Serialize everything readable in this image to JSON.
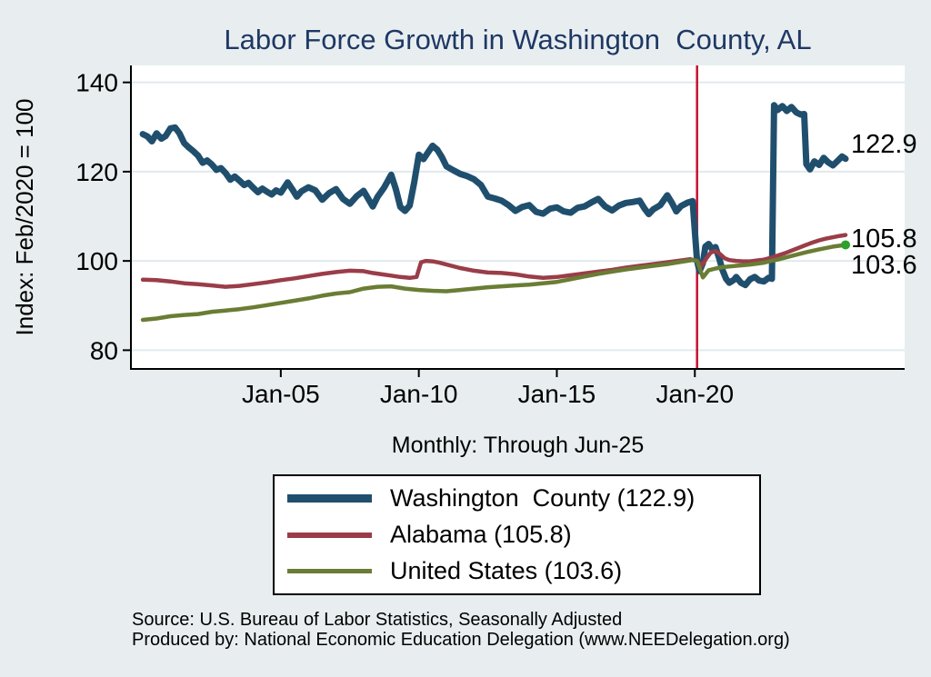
{
  "title": "Labor Force Growth in Washington  County, AL",
  "subtitle": "Monthly: Through Jun-25",
  "source": {
    "line1": "Source: U.S. Bureau of Labor Statistics, Seasonally Adjusted",
    "line2": "Produced by: National Economic Education Delegation (www.NEEDelegation.org)"
  },
  "colors": {
    "background": "#e8eef0",
    "plot_background": "#ffffff",
    "gridline": "#e0eaee",
    "axis": "#000000",
    "title_text": "#1f3864",
    "washington_county": "#204f6e",
    "alabama": "#9a3d48",
    "united_states": "#6a7d34",
    "us_end_marker": "#2ca12c",
    "reference_line": "#c41233"
  },
  "legend": {
    "entries": [
      {
        "label": "Washington  County (122.9)",
        "color": "#204f6e"
      },
      {
        "label": "Alabama (105.8)",
        "color": "#9a3d48"
      },
      {
        "label": "United States (103.6)",
        "color": "#6a7d34"
      }
    ]
  },
  "chart_data": {
    "type": "line",
    "title": "Labor Force Growth in Washington  County, AL",
    "subtitle": "Monthly: Through Jun-25",
    "xlabel": "",
    "ylabel": "Index: Feb/2020 = 100",
    "xlim": [
      1999.57,
      2027.6
    ],
    "ylim": [
      75.8,
      143.8
    ],
    "y_ticks": [
      80,
      100,
      120,
      140
    ],
    "y_tick_labels": [
      "80",
      "100",
      "120",
      "140"
    ],
    "x_ticks": [
      2005,
      2010,
      2015,
      2020
    ],
    "x_tick_labels": [
      "Jan-05",
      "Jan-10",
      "Jan-15",
      "Jan-20"
    ],
    "grid": true,
    "legend_position": "below",
    "vline_x": 2020.08,
    "vline_label": "Feb-2020 reference line",
    "end_labels": [
      "122.9",
      "105.8",
      "103.6"
    ],
    "series": [
      {
        "name": "Washington County",
        "final_value": 122.9,
        "color": "#204f6e",
        "width": 7,
        "points": [
          [
            2000.0,
            128.4
          ],
          [
            2000.17,
            127.9
          ],
          [
            2000.33,
            126.8
          ],
          [
            2000.5,
            128.6
          ],
          [
            2000.67,
            127.4
          ],
          [
            2000.83,
            128.0
          ],
          [
            2001.0,
            129.7
          ],
          [
            2001.17,
            129.9
          ],
          [
            2001.33,
            128.6
          ],
          [
            2001.5,
            126.4
          ],
          [
            2001.67,
            125.4
          ],
          [
            2001.83,
            124.6
          ],
          [
            2002.0,
            123.6
          ],
          [
            2002.17,
            122.0
          ],
          [
            2002.33,
            122.5
          ],
          [
            2002.5,
            121.6
          ],
          [
            2002.67,
            120.4
          ],
          [
            2002.83,
            120.8
          ],
          [
            2003.0,
            119.7
          ],
          [
            2003.17,
            118.2
          ],
          [
            2003.33,
            118.9
          ],
          [
            2003.5,
            118.0
          ],
          [
            2003.67,
            117.0
          ],
          [
            2003.83,
            117.5
          ],
          [
            2004.0,
            116.4
          ],
          [
            2004.17,
            115.4
          ],
          [
            2004.33,
            116.2
          ],
          [
            2004.5,
            115.5
          ],
          [
            2004.67,
            114.9
          ],
          [
            2004.83,
            115.8
          ],
          [
            2005.0,
            115.3
          ],
          [
            2005.25,
            117.6
          ],
          [
            2005.42,
            116.0
          ],
          [
            2005.58,
            114.4
          ],
          [
            2005.75,
            115.6
          ],
          [
            2006.0,
            116.5
          ],
          [
            2006.25,
            115.8
          ],
          [
            2006.5,
            113.7
          ],
          [
            2006.75,
            115.2
          ],
          [
            2007.0,
            116.1
          ],
          [
            2007.25,
            113.9
          ],
          [
            2007.5,
            112.8
          ],
          [
            2007.75,
            114.5
          ],
          [
            2008.0,
            115.7
          ],
          [
            2008.17,
            113.9
          ],
          [
            2008.33,
            112.2
          ],
          [
            2008.5,
            114.3
          ],
          [
            2008.75,
            116.5
          ],
          [
            2009.0,
            119.3
          ],
          [
            2009.17,
            116.0
          ],
          [
            2009.33,
            112.1
          ],
          [
            2009.5,
            111.2
          ],
          [
            2009.67,
            112.4
          ],
          [
            2009.83,
            117.5
          ],
          [
            2010.0,
            123.8
          ],
          [
            2010.17,
            122.8
          ],
          [
            2010.33,
            124.3
          ],
          [
            2010.5,
            125.8
          ],
          [
            2010.67,
            124.9
          ],
          [
            2010.83,
            123.3
          ],
          [
            2011.0,
            121.2
          ],
          [
            2011.25,
            120.3
          ],
          [
            2011.5,
            119.5
          ],
          [
            2011.75,
            119.0
          ],
          [
            2012.0,
            118.3
          ],
          [
            2012.25,
            117.0
          ],
          [
            2012.5,
            114.4
          ],
          [
            2012.75,
            114.0
          ],
          [
            2013.0,
            113.5
          ],
          [
            2013.25,
            112.5
          ],
          [
            2013.5,
            111.2
          ],
          [
            2013.75,
            112.1
          ],
          [
            2014.0,
            112.5
          ],
          [
            2014.25,
            111.0
          ],
          [
            2014.5,
            110.6
          ],
          [
            2014.75,
            111.7
          ],
          [
            2015.0,
            112.0
          ],
          [
            2015.25,
            111.1
          ],
          [
            2015.5,
            110.8
          ],
          [
            2015.75,
            111.9
          ],
          [
            2016.0,
            112.2
          ],
          [
            2016.25,
            113.1
          ],
          [
            2016.5,
            113.9
          ],
          [
            2016.75,
            112.2
          ],
          [
            2017.0,
            111.3
          ],
          [
            2017.25,
            112.4
          ],
          [
            2017.5,
            113.0
          ],
          [
            2017.75,
            113.2
          ],
          [
            2018.0,
            113.5
          ],
          [
            2018.17,
            111.8
          ],
          [
            2018.33,
            110.5
          ],
          [
            2018.5,
            111.6
          ],
          [
            2018.75,
            112.5
          ],
          [
            2019.0,
            114.7
          ],
          [
            2019.17,
            113.0
          ],
          [
            2019.33,
            111.1
          ],
          [
            2019.5,
            112.3
          ],
          [
            2019.75,
            113.1
          ],
          [
            2019.92,
            113.4
          ],
          [
            2020.08,
            100.0
          ],
          [
            2020.17,
            97.7
          ],
          [
            2020.29,
            99.5
          ],
          [
            2020.38,
            103.2
          ],
          [
            2020.5,
            103.8
          ],
          [
            2020.63,
            102.6
          ],
          [
            2020.75,
            103.1
          ],
          [
            2020.88,
            100.6
          ],
          [
            2021.0,
            98.0
          ],
          [
            2021.13,
            96.0
          ],
          [
            2021.25,
            95.1
          ],
          [
            2021.42,
            95.8
          ],
          [
            2021.5,
            96.4
          ],
          [
            2021.67,
            95.1
          ],
          [
            2021.83,
            94.6
          ],
          [
            2022.0,
            95.9
          ],
          [
            2022.17,
            96.4
          ],
          [
            2022.33,
            95.6
          ],
          [
            2022.5,
            95.4
          ],
          [
            2022.67,
            96.2
          ],
          [
            2022.79,
            96.0
          ],
          [
            2022.87,
            134.9
          ],
          [
            2023.0,
            133.8
          ],
          [
            2023.17,
            134.7
          ],
          [
            2023.33,
            133.6
          ],
          [
            2023.5,
            134.5
          ],
          [
            2023.67,
            133.3
          ],
          [
            2023.83,
            132.8
          ],
          [
            2023.96,
            132.9
          ],
          [
            2024.04,
            121.7
          ],
          [
            2024.17,
            120.5
          ],
          [
            2024.33,
            122.3
          ],
          [
            2024.5,
            121.5
          ],
          [
            2024.67,
            123.1
          ],
          [
            2024.83,
            122.1
          ],
          [
            2025.0,
            121.4
          ],
          [
            2025.17,
            122.4
          ],
          [
            2025.33,
            123.4
          ],
          [
            2025.46,
            122.9
          ]
        ]
      },
      {
        "name": "Alabama",
        "final_value": 105.8,
        "color": "#9a3d48",
        "width": 4.5,
        "points": [
          [
            2000.0,
            95.8
          ],
          [
            2000.5,
            95.7
          ],
          [
            2001.0,
            95.4
          ],
          [
            2001.5,
            95.0
          ],
          [
            2002.0,
            94.8
          ],
          [
            2002.5,
            94.5
          ],
          [
            2003.0,
            94.2
          ],
          [
            2003.5,
            94.4
          ],
          [
            2004.0,
            94.8
          ],
          [
            2004.5,
            95.2
          ],
          [
            2005.0,
            95.7
          ],
          [
            2005.5,
            96.1
          ],
          [
            2006.0,
            96.6
          ],
          [
            2006.5,
            97.1
          ],
          [
            2007.0,
            97.5
          ],
          [
            2007.5,
            97.8
          ],
          [
            2008.0,
            97.7
          ],
          [
            2008.33,
            97.3
          ],
          [
            2008.67,
            97.0
          ],
          [
            2009.0,
            96.7
          ],
          [
            2009.33,
            96.4
          ],
          [
            2009.67,
            96.2
          ],
          [
            2009.92,
            96.4
          ],
          [
            2010.08,
            99.7
          ],
          [
            2010.25,
            100.0
          ],
          [
            2010.5,
            99.9
          ],
          [
            2010.75,
            99.6
          ],
          [
            2011.0,
            99.2
          ],
          [
            2011.5,
            98.4
          ],
          [
            2012.0,
            97.8
          ],
          [
            2012.5,
            97.4
          ],
          [
            2013.0,
            97.3
          ],
          [
            2013.5,
            97.0
          ],
          [
            2014.0,
            96.5
          ],
          [
            2014.5,
            96.2
          ],
          [
            2015.0,
            96.4
          ],
          [
            2015.5,
            96.8
          ],
          [
            2016.0,
            97.2
          ],
          [
            2016.5,
            97.6
          ],
          [
            2017.0,
            98.0
          ],
          [
            2017.5,
            98.5
          ],
          [
            2018.0,
            98.9
          ],
          [
            2018.5,
            99.3
          ],
          [
            2019.0,
            99.7
          ],
          [
            2019.5,
            100.1
          ],
          [
            2019.83,
            100.4
          ],
          [
            2020.08,
            100.0
          ],
          [
            2020.25,
            98.9
          ],
          [
            2020.42,
            100.6
          ],
          [
            2020.58,
            101.9
          ],
          [
            2020.75,
            102.2
          ],
          [
            2020.92,
            101.5
          ],
          [
            2021.08,
            100.6
          ],
          [
            2021.25,
            100.2
          ],
          [
            2021.5,
            100.0
          ],
          [
            2021.75,
            99.9
          ],
          [
            2022.0,
            99.9
          ],
          [
            2022.25,
            100.1
          ],
          [
            2022.5,
            100.3
          ],
          [
            2022.75,
            100.7
          ],
          [
            2023.0,
            101.2
          ],
          [
            2023.25,
            101.7
          ],
          [
            2023.5,
            102.3
          ],
          [
            2023.75,
            102.9
          ],
          [
            2024.0,
            103.5
          ],
          [
            2024.25,
            104.1
          ],
          [
            2024.5,
            104.6
          ],
          [
            2024.75,
            105.0
          ],
          [
            2025.0,
            105.3
          ],
          [
            2025.25,
            105.6
          ],
          [
            2025.46,
            105.8
          ]
        ]
      },
      {
        "name": "United States",
        "final_value": 103.6,
        "color": "#6a7d34",
        "width": 4.5,
        "end_marker": true,
        "points": [
          [
            2000.0,
            86.8
          ],
          [
            2000.5,
            87.1
          ],
          [
            2001.0,
            87.6
          ],
          [
            2001.5,
            87.9
          ],
          [
            2002.0,
            88.1
          ],
          [
            2002.5,
            88.6
          ],
          [
            2003.0,
            88.9
          ],
          [
            2003.5,
            89.2
          ],
          [
            2004.0,
            89.6
          ],
          [
            2004.5,
            90.1
          ],
          [
            2005.0,
            90.6
          ],
          [
            2005.5,
            91.1
          ],
          [
            2006.0,
            91.6
          ],
          [
            2006.5,
            92.2
          ],
          [
            2007.0,
            92.7
          ],
          [
            2007.5,
            93.0
          ],
          [
            2008.0,
            93.8
          ],
          [
            2008.5,
            94.2
          ],
          [
            2009.0,
            94.3
          ],
          [
            2009.5,
            93.8
          ],
          [
            2010.0,
            93.5
          ],
          [
            2010.5,
            93.3
          ],
          [
            2011.0,
            93.2
          ],
          [
            2011.5,
            93.5
          ],
          [
            2012.0,
            93.8
          ],
          [
            2012.5,
            94.1
          ],
          [
            2013.0,
            94.3
          ],
          [
            2013.5,
            94.5
          ],
          [
            2014.0,
            94.7
          ],
          [
            2014.5,
            95.0
          ],
          [
            2015.0,
            95.3
          ],
          [
            2015.5,
            95.9
          ],
          [
            2016.0,
            96.5
          ],
          [
            2016.5,
            97.1
          ],
          [
            2017.0,
            97.6
          ],
          [
            2017.5,
            98.1
          ],
          [
            2018.0,
            98.5
          ],
          [
            2018.5,
            98.9
          ],
          [
            2019.0,
            99.3
          ],
          [
            2019.5,
            99.8
          ],
          [
            2019.92,
            100.2
          ],
          [
            2020.08,
            100.0
          ],
          [
            2020.29,
            96.3
          ],
          [
            2020.5,
            97.9
          ],
          [
            2020.75,
            98.3
          ],
          [
            2021.0,
            98.6
          ],
          [
            2021.5,
            98.9
          ],
          [
            2022.0,
            99.2
          ],
          [
            2022.5,
            99.6
          ],
          [
            2022.83,
            100.1
          ],
          [
            2023.0,
            100.3
          ],
          [
            2023.5,
            101.1
          ],
          [
            2024.0,
            101.9
          ],
          [
            2024.5,
            102.6
          ],
          [
            2025.0,
            103.2
          ],
          [
            2025.46,
            103.6
          ]
        ]
      }
    ]
  }
}
